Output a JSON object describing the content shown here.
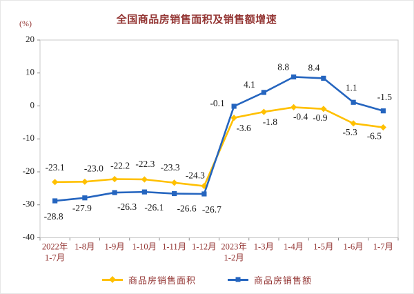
{
  "chart_data": {
    "type": "line",
    "title": "全国商品房销售面积及销售额增速",
    "ylabel": "(%)",
    "xlabel": "",
    "ylim": [
      -40,
      20
    ],
    "ytick_step": 10,
    "grid": false,
    "legend_position": "bottom",
    "categories": [
      [
        "2022年",
        "1-7月"
      ],
      [
        "1-8月"
      ],
      [
        "1-9月"
      ],
      [
        "1-10月"
      ],
      [
        "1-11月"
      ],
      [
        "1-12月"
      ],
      [
        "2023年",
        "1-2月"
      ],
      [
        "1-3月"
      ],
      [
        "1-4月"
      ],
      [
        "1-5月"
      ],
      [
        "1-6月"
      ],
      [
        "1-7月"
      ]
    ],
    "series": [
      {
        "name": "商品房销售面积",
        "color": "#FFC000",
        "marker": "diamond",
        "values": [
          -23.1,
          -23.0,
          -22.2,
          -22.3,
          -23.3,
          -24.3,
          -3.6,
          -1.8,
          -0.4,
          -0.9,
          -5.3,
          -6.5
        ],
        "label_offsets": [
          [
            0,
            -20
          ],
          [
            13,
            -18
          ],
          [
            8,
            -18
          ],
          [
            1,
            -21
          ],
          [
            -6,
            -21
          ],
          [
            -13,
            -14
          ],
          [
            14,
            16
          ],
          [
            9,
            16
          ],
          [
            10,
            15
          ],
          [
            -5,
            14
          ],
          [
            -5,
            14
          ],
          [
            -13,
            14
          ]
        ]
      },
      {
        "name": "商品房销售额",
        "color": "#2565BF",
        "marker": "square",
        "values": [
          -28.8,
          -27.9,
          -26.3,
          -26.1,
          -26.6,
          -26.7,
          -0.1,
          4.1,
          8.8,
          8.4,
          1.1,
          -1.5
        ],
        "label_offsets": [
          [
            -2,
            24
          ],
          [
            -4,
            16
          ],
          [
            18,
            22
          ],
          [
            14,
            24
          ],
          [
            18,
            23
          ],
          [
            11,
            24
          ],
          [
            -24,
            -3
          ],
          [
            -21,
            -10
          ],
          [
            -15,
            -13
          ],
          [
            -14,
            -14
          ],
          [
            -3,
            -20
          ],
          [
            2,
            -19
          ]
        ]
      }
    ],
    "colors": {
      "title": "#943634",
      "axis_label": "#943634",
      "tick_label": "#262626",
      "data_label": "#1a1a1a",
      "plot_border": "#c9c9c9",
      "tick_mark": "#8c8c8c"
    }
  }
}
